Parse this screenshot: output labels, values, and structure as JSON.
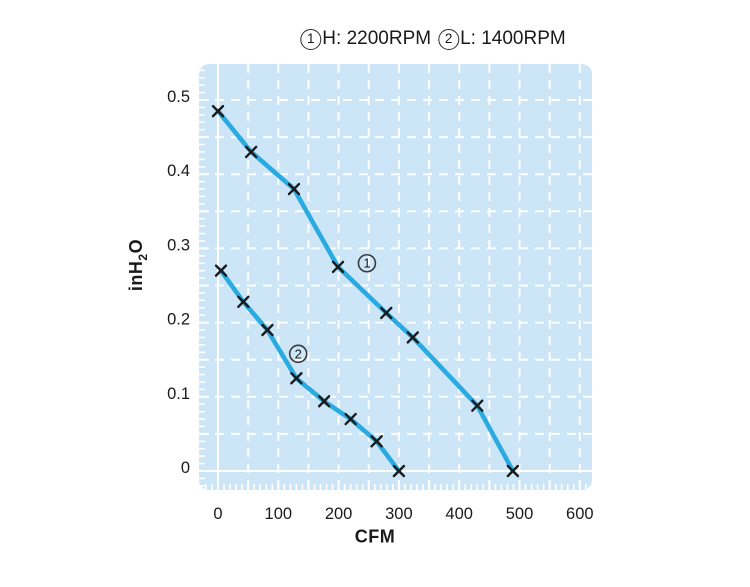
{
  "title": {
    "series1_symbol": "1",
    "series1_text": "H: 2200RPM",
    "series2_symbol": "2",
    "series2_text": "L: 1400RPM"
  },
  "axes": {
    "x_title": "CFM",
    "y_pre": "inH",
    "y_sub": "2",
    "y_post": "O"
  },
  "chart_data": {
    "type": "line",
    "title": "(1) H: 2200RPM   (2) L: 1400RPM",
    "xlabel": "CFM",
    "ylabel": "inH2O",
    "xlim": [
      -32,
      620
    ],
    "ylim": [
      -0.026,
      0.547
    ],
    "x_ticks": [
      0,
      100,
      200,
      300,
      400,
      500,
      600
    ],
    "y_ticks": [
      0,
      0.1,
      0.2,
      0.3,
      0.4,
      0.5
    ],
    "x_grid_step": 50,
    "y_grid_step": 0.05,
    "x_minor_tick_step": 10,
    "y_minor_tick_step": 0.01,
    "grid": "white dashed gridlines on light blue panel, solid white zero lines",
    "legend_position": "title above chart",
    "series": [
      {
        "name": "1",
        "label": "H: 2200RPM",
        "marker": "x",
        "points": [
          [
            0,
            0.485
          ],
          [
            55,
            0.43
          ],
          [
            126,
            0.38
          ],
          [
            199,
            0.275
          ],
          [
            279,
            0.213
          ],
          [
            323,
            0.18
          ],
          [
            430,
            0.088
          ],
          [
            489,
            0
          ]
        ]
      },
      {
        "name": "2",
        "label": "L: 1400RPM",
        "marker": "x",
        "points": [
          [
            5,
            0.27
          ],
          [
            42,
            0.228
          ],
          [
            82,
            0.19
          ],
          [
            130,
            0.125
          ],
          [
            176,
            0.094
          ],
          [
            220,
            0.07
          ],
          [
            263,
            0.04
          ],
          [
            300,
            0
          ]
        ]
      }
    ],
    "annotations": [
      {
        "text": "1",
        "x": 247,
        "y": 0.28
      },
      {
        "text": "2",
        "x": 133,
        "y": 0.158
      }
    ],
    "colors": {
      "curve": "#29abe2",
      "plot_bg": "#cde6f7",
      "grid": "#ffffff",
      "marker": "#1a1a1a",
      "text": "#1a1a1a",
      "annotation_ring": "#3a3a3a"
    }
  }
}
